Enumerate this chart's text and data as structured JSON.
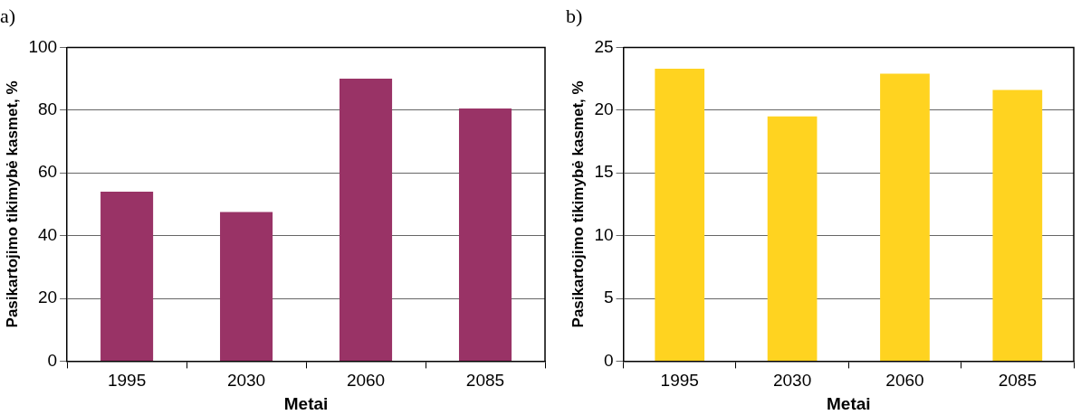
{
  "chart_data": [
    {
      "type": "bar",
      "title": "a)",
      "xlabel": "Metai",
      "ylabel": "Pasikartojimo tikimybė kasmet, %",
      "categories": [
        "1995",
        "2030",
        "2060",
        "2085"
      ],
      "values": [
        54,
        47.5,
        90,
        80.5
      ],
      "color": "#993366",
      "ylim": [
        0,
        100
      ],
      "yticks": [
        0,
        20,
        40,
        60,
        80,
        100
      ],
      "grid": "y"
    },
    {
      "type": "bar",
      "title": "b)",
      "xlabel": "Metai",
      "ylabel": "Pasikartojimo tikimybė kasmet, %",
      "categories": [
        "1995",
        "2030",
        "2060",
        "2085"
      ],
      "values": [
        23.3,
        19.5,
        22.9,
        21.6
      ],
      "color": "#ffd320",
      "ylim": [
        0,
        25
      ],
      "yticks": [
        0,
        5,
        10,
        15,
        20,
        25
      ],
      "grid": "y"
    }
  ]
}
